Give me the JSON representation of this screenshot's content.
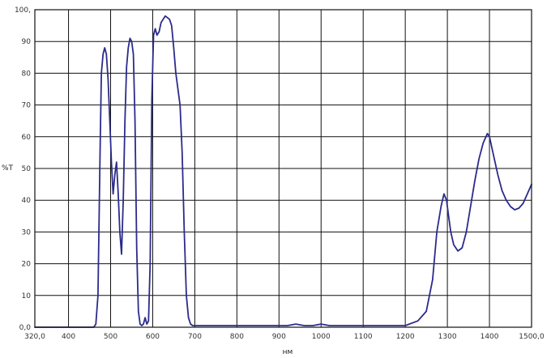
{
  "chart_data": {
    "type": "line",
    "title": "",
    "xlabel": "нм",
    "ylabel": "%T",
    "xlim": [
      320,
      1500
    ],
    "ylim": [
      0,
      100
    ],
    "grid": true,
    "x_ticks": [
      320,
      400,
      500,
      600,
      700,
      800,
      900,
      1000,
      1100,
      1200,
      1300,
      1400,
      1500
    ],
    "x_tick_labels": [
      "320,0",
      "400",
      "500",
      "600",
      "700",
      "800",
      "900",
      "1000",
      "1100",
      "1200",
      "1300",
      "1400",
      "1500,0"
    ],
    "y_ticks": [
      0,
      10,
      20,
      30,
      40,
      50,
      60,
      70,
      80,
      90,
      100
    ],
    "y_tick_labels": [
      "0,0",
      "10",
      "20",
      "30",
      "40",
      "50",
      "60",
      "70",
      "80",
      "90",
      "100,"
    ],
    "colors": {
      "line": "#2b2b8c",
      "grid": "#111111",
      "frame": "#111111"
    },
    "series": [
      {
        "x": [
          320,
          400,
          450,
          460,
          465,
          470,
          475,
          478,
          482,
          486,
          490,
          494,
          498,
          502,
          506,
          510,
          514,
          518,
          522,
          526,
          530,
          534,
          538,
          542,
          546,
          550,
          554,
          558,
          562,
          566,
          570,
          574,
          578,
          582,
          586,
          590,
          594,
          598,
          602,
          606,
          610,
          615,
          620,
          625,
          630,
          635,
          640,
          645,
          650,
          655,
          660,
          665,
          670,
          675,
          680,
          685,
          690,
          695,
          700,
          705,
          710,
          720,
          750,
          800,
          850,
          900,
          920,
          940,
          960,
          980,
          1000,
          1020,
          1050,
          1100,
          1150,
          1200,
          1230,
          1250,
          1265,
          1275,
          1285,
          1292,
          1298,
          1302,
          1308,
          1315,
          1325,
          1335,
          1345,
          1355,
          1365,
          1375,
          1385,
          1395,
          1400,
          1405,
          1410,
          1420,
          1430,
          1440,
          1450,
          1460,
          1470,
          1480,
          1490,
          1500
        ],
        "y": [
          0,
          0,
          0,
          0,
          1,
          10,
          55,
          80,
          86,
          88,
          86,
          78,
          65,
          52,
          42,
          48,
          52,
          42,
          30,
          23,
          40,
          65,
          82,
          88,
          91,
          90,
          86,
          65,
          25,
          5,
          1,
          0.5,
          1,
          3,
          1,
          2,
          20,
          72,
          92,
          94,
          92,
          93,
          96,
          97,
          98,
          97.5,
          97,
          95,
          88,
          80,
          75,
          70,
          55,
          30,
          10,
          3,
          1,
          0.5,
          0.5,
          0.5,
          0.5,
          0.5,
          0.5,
          0.5,
          0.5,
          0.5,
          0.5,
          1,
          0.5,
          0.5,
          1,
          0.5,
          0.5,
          0.5,
          0.5,
          0.5,
          2,
          5,
          15,
          30,
          38,
          42,
          40,
          36,
          30,
          26,
          24,
          25,
          30,
          38,
          46,
          53,
          58,
          61,
          60,
          57,
          54,
          48,
          43,
          40,
          38,
          37,
          37.5,
          39,
          42,
          45
        ]
      }
    ]
  }
}
